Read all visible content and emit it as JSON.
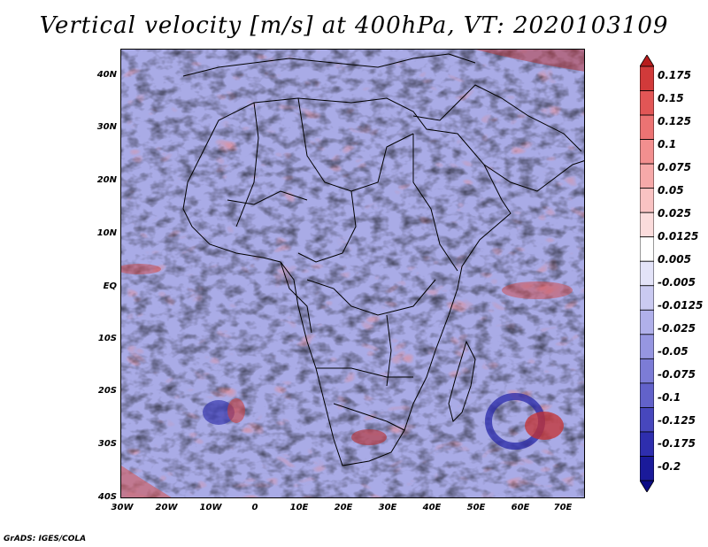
{
  "title": "Vertical velocity [m/s] at 400hPa, VT: 2020103109",
  "footer": "GrADS: IGES/COLA",
  "map": {
    "lat_labels": [
      "40N",
      "30N",
      "20N",
      "10N",
      "EQ",
      "10S",
      "20S",
      "30S",
      "40S"
    ],
    "lon_labels": [
      "30W",
      "20W",
      "10W",
      "0",
      "10E",
      "20E",
      "30E",
      "40E",
      "50E",
      "60E",
      "70E"
    ]
  },
  "colorbar": {
    "labels": [
      "0.175",
      "0.15",
      "0.125",
      "0.1",
      "0.075",
      "0.05",
      "0.025",
      "0.0125",
      "0.005",
      "-0.005",
      "-0.0125",
      "-0.025",
      "-0.05",
      "-0.075",
      "-0.1",
      "-0.125",
      "-0.175",
      "-0.2"
    ],
    "colors": [
      "#b71c1c",
      "#d13a3a",
      "#e25656",
      "#ec7373",
      "#f28f8f",
      "#f6a9a9",
      "#f9c3c3",
      "#fbdcdc",
      "#ffffff",
      "#e3e3f8",
      "#cacaf1",
      "#b0b0ea",
      "#9696e1",
      "#7c7cd6",
      "#6262ca",
      "#4747bd",
      "#2e2eae",
      "#1a1a9a",
      "#0b0b85"
    ]
  }
}
